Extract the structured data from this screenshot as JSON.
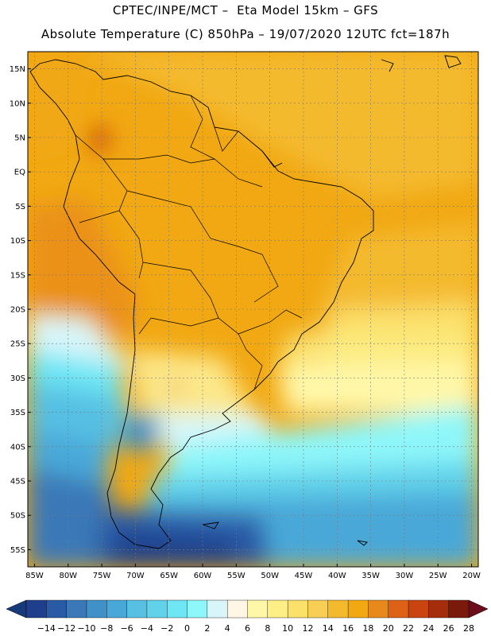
{
  "header": {
    "line1": "CPTEC/INPE/MCT –  Eta Model 15km – GFS",
    "line2": "Absolute Temperature (C) 850hPa – 19/07/2020 12UTC fct=187h"
  },
  "map": {
    "lat_labels": [
      "15N",
      "10N",
      "5N",
      "EQ",
      "5S",
      "10S",
      "15S",
      "20S",
      "25S",
      "30S",
      "35S",
      "40S",
      "45S",
      "50S",
      "55S"
    ],
    "lon_labels": [
      "85W",
      "80W",
      "75W",
      "70W",
      "65W",
      "60W",
      "55W",
      "50W",
      "45W",
      "40W",
      "35W",
      "30W",
      "25W",
      "20W"
    ],
    "lat_extent": [
      17.5,
      -57.5
    ],
    "lon_extent": [
      -86,
      -19
    ]
  },
  "colorbar": {
    "labels": [
      "-14",
      "-12",
      "-10",
      "-8",
      "-6",
      "-4",
      "-2",
      "0",
      "2",
      "4",
      "6",
      "8",
      "10",
      "12",
      "14",
      "16",
      "18",
      "20",
      "22",
      "24",
      "26",
      "28"
    ],
    "colors": [
      "#1f3f8c",
      "#2a5aa5",
      "#3a78b8",
      "#3f91c8",
      "#4aa8d8",
      "#57c0e3",
      "#62d2ea",
      "#6ee6f4",
      "#8ef7fa",
      "#d8f6fa",
      "#fff6e6",
      "#fff7a8",
      "#fdee85",
      "#fbe06a",
      "#f8cf54",
      "#f4ba2e",
      "#f1a812",
      "#e8891c",
      "#dd6116",
      "#c9440f",
      "#a62d0c",
      "#7a1a0a"
    ],
    "low_color": "#173a7a",
    "high_color": "#6b0d1a"
  }
}
